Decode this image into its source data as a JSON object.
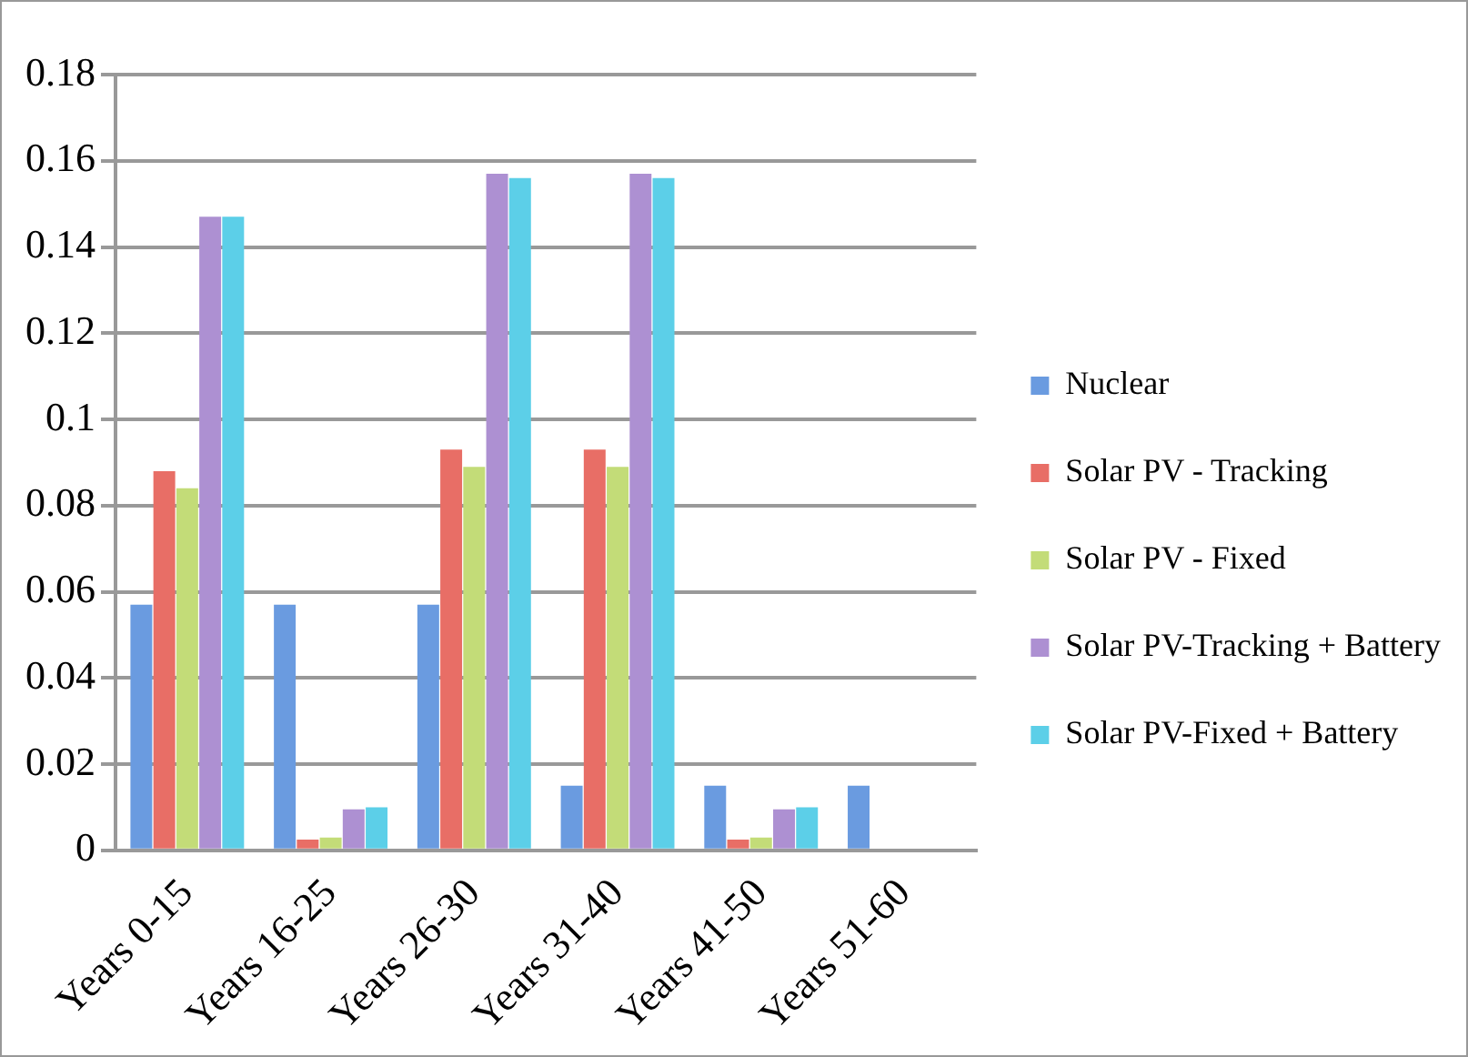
{
  "chart_data": {
    "type": "bar",
    "categories": [
      "Years 0-15",
      "Years 16-25",
      "Years 26-30",
      "Years 31-40",
      "Years 41-50",
      "Years 51-60"
    ],
    "series": [
      {
        "name": "Nuclear",
        "color": "#6a9be0",
        "values": [
          0.057,
          0.057,
          0.057,
          0.015,
          0.015,
          0.015
        ]
      },
      {
        "name": "Solar PV - Tracking",
        "color": "#e86e66",
        "values": [
          0.088,
          0.0025,
          0.093,
          0.093,
          0.0025,
          0
        ]
      },
      {
        "name": "Solar PV - Fixed",
        "color": "#c3dc78",
        "values": [
          0.084,
          0.003,
          0.089,
          0.089,
          0.003,
          0
        ]
      },
      {
        "name": "Solar PV-Tracking + Battery",
        "color": "#ad90d2",
        "values": [
          0.147,
          0.0095,
          0.157,
          0.157,
          0.0095,
          0
        ]
      },
      {
        "name": "Solar PV-Fixed + Battery",
        "color": "#5ccfe8",
        "values": [
          0.147,
          0.01,
          0.156,
          0.156,
          0.01,
          0
        ]
      }
    ],
    "ylim": [
      0,
      0.18
    ],
    "yticks": [
      0,
      0.02,
      0.04,
      0.06,
      0.08,
      {
        "value": 0.1,
        "label": "0.1"
      },
      0.12,
      0.14,
      0.16,
      0.18
    ],
    "grid": "y",
    "legend": "right"
  }
}
